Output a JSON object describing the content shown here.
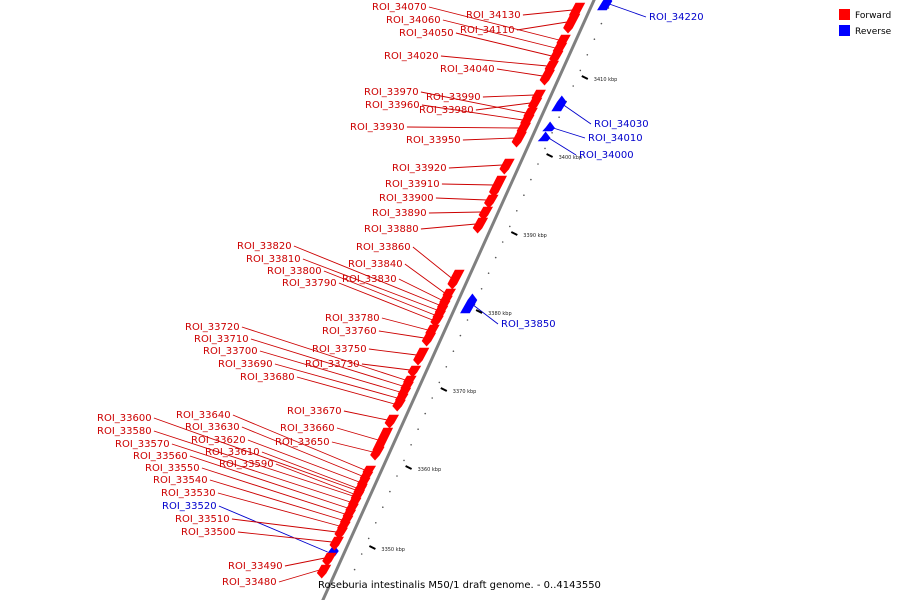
{
  "title": "Roseburia intestinalis M50/1 draft genome. - 0..4143550",
  "legend": [
    {
      "label": "Forward",
      "color": "#ff0000"
    },
    {
      "label": "Reverse",
      "color": "#0000ff"
    }
  ],
  "axis": {
    "ticks": [
      "3350 kbp",
      "3360 kbp",
      "3370 kbp",
      "3380 kbp",
      "3390 kbp",
      "3400 kbp",
      "3410 kbp"
    ]
  },
  "colors": {
    "forward": "#ff0000",
    "forward_label": "#cc0000",
    "reverse": "#0000ff",
    "reverse_label": "#0000cc",
    "backbone": "#808080"
  },
  "features": [
    {
      "label": "ROI_34220",
      "strand": "reverse"
    },
    {
      "label": "ROI_34130",
      "strand": "forward"
    },
    {
      "label": "ROI_34110",
      "strand": "forward"
    },
    {
      "label": "ROI_34070",
      "strand": "forward"
    },
    {
      "label": "ROI_34060",
      "strand": "forward"
    },
    {
      "label": "ROI_34050",
      "strand": "forward"
    },
    {
      "label": "ROI_34020",
      "strand": "forward"
    },
    {
      "label": "ROI_34040",
      "strand": "forward"
    },
    {
      "label": "ROI_33990",
      "strand": "forward"
    },
    {
      "label": "ROI_33980",
      "strand": "forward"
    },
    {
      "label": "ROI_33970",
      "strand": "forward"
    },
    {
      "label": "ROI_33960",
      "strand": "forward"
    },
    {
      "label": "ROI_34030",
      "strand": "reverse"
    },
    {
      "label": "ROI_34010",
      "strand": "reverse"
    },
    {
      "label": "ROI_34000",
      "strand": "reverse"
    },
    {
      "label": "ROI_33930",
      "strand": "forward"
    },
    {
      "label": "ROI_33950",
      "strand": "forward"
    },
    {
      "label": "ROI_33920",
      "strand": "forward"
    },
    {
      "label": "ROI_33910",
      "strand": "forward"
    },
    {
      "label": "ROI_33900",
      "strand": "forward"
    },
    {
      "label": "ROI_33890",
      "strand": "forward"
    },
    {
      "label": "ROI_33880",
      "strand": "forward"
    },
    {
      "label": "ROI_33820",
      "strand": "forward"
    },
    {
      "label": "ROI_33860",
      "strand": "forward"
    },
    {
      "label": "ROI_33810",
      "strand": "forward"
    },
    {
      "label": "ROI_33800",
      "strand": "forward"
    },
    {
      "label": "ROI_33840",
      "strand": "forward"
    },
    {
      "label": "ROI_33830",
      "strand": "forward"
    },
    {
      "label": "ROI_33790",
      "strand": "forward"
    },
    {
      "label": "ROI_33850",
      "strand": "reverse"
    },
    {
      "label": "ROI_33780",
      "strand": "forward"
    },
    {
      "label": "ROI_33720",
      "strand": "forward"
    },
    {
      "label": "ROI_33760",
      "strand": "forward"
    },
    {
      "label": "ROI_33710",
      "strand": "forward"
    },
    {
      "label": "ROI_33700",
      "strand": "forward"
    },
    {
      "label": "ROI_33750",
      "strand": "forward"
    },
    {
      "label": "ROI_33690",
      "strand": "forward"
    },
    {
      "label": "ROI_33730",
      "strand": "forward"
    },
    {
      "label": "ROI_33680",
      "strand": "forward"
    },
    {
      "label": "ROI_33670",
      "strand": "forward"
    },
    {
      "label": "ROI_33640",
      "strand": "forward"
    },
    {
      "label": "ROI_33600",
      "strand": "forward"
    },
    {
      "label": "ROI_33630",
      "strand": "forward"
    },
    {
      "label": "ROI_33660",
      "strand": "forward"
    },
    {
      "label": "ROI_33580",
      "strand": "forward"
    },
    {
      "label": "ROI_33620",
      "strand": "forward"
    },
    {
      "label": "ROI_33650",
      "strand": "forward"
    },
    {
      "label": "ROI_33570",
      "strand": "forward"
    },
    {
      "label": "ROI_33610",
      "strand": "forward"
    },
    {
      "label": "ROI_33560",
      "strand": "forward"
    },
    {
      "label": "ROI_33590",
      "strand": "forward"
    },
    {
      "label": "ROI_33550",
      "strand": "forward"
    },
    {
      "label": "ROI_33540",
      "strand": "forward"
    },
    {
      "label": "ROI_33530",
      "strand": "forward"
    },
    {
      "label": "ROI_33520",
      "strand": "reverse"
    },
    {
      "label": "ROI_33510",
      "strand": "forward"
    },
    {
      "label": "ROI_33500",
      "strand": "forward"
    },
    {
      "label": "ROI_33490",
      "strand": "forward"
    },
    {
      "label": "ROI_33480",
      "strand": "forward"
    }
  ]
}
